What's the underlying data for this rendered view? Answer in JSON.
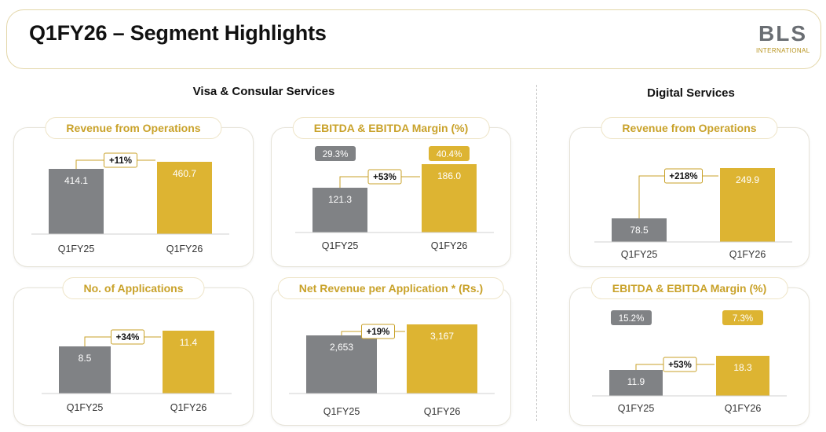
{
  "header": {
    "title": "Q1FY26 – Segment Highlights",
    "logo_main": "BLS",
    "logo_sub": "INTERNATIONAL"
  },
  "sections": {
    "visa": "Visa & Consular Services",
    "digital": "Digital Services"
  },
  "colors": {
    "prior": "#808285",
    "current": "#ddb432",
    "accent": "#c9a22a"
  },
  "chart_data": [
    {
      "id": "visa-revenue",
      "type": "bar",
      "title": "Revenue from Operations",
      "categories": [
        "Q1FY25",
        "Q1FY26"
      ],
      "values": [
        414.1,
        460.7
      ],
      "value_labels": [
        "414.1",
        "460.7"
      ],
      "growth": "+11%"
    },
    {
      "id": "visa-ebitda",
      "type": "bar",
      "title": "EBITDA & EBITDA Margin (%)",
      "categories": [
        "Q1FY25",
        "Q1FY26"
      ],
      "values": [
        121.3,
        186.0
      ],
      "value_labels": [
        "121.3",
        "186.0"
      ],
      "margins": [
        "29.3%",
        "40.4%"
      ],
      "growth": "+53%"
    },
    {
      "id": "visa-applications",
      "type": "bar",
      "title": "No. of Applications",
      "categories": [
        "Q1FY25",
        "Q1FY26"
      ],
      "values": [
        8.5,
        11.4
      ],
      "value_labels": [
        "8.5",
        "11.4"
      ],
      "growth": "+34%"
    },
    {
      "id": "visa-net-revenue",
      "type": "bar",
      "title": "Net Revenue per Application * (Rs.)",
      "categories": [
        "Q1FY25",
        "Q1FY26"
      ],
      "values": [
        2653,
        3167
      ],
      "value_labels": [
        "2,653",
        "3,167"
      ],
      "growth": "+19%"
    },
    {
      "id": "digital-revenue",
      "type": "bar",
      "title": "Revenue from Operations",
      "categories": [
        "Q1FY25",
        "Q1FY26"
      ],
      "values": [
        78.5,
        249.9
      ],
      "value_labels": [
        "78.5",
        "249.9"
      ],
      "growth": "+218%"
    },
    {
      "id": "digital-ebitda",
      "type": "bar",
      "title": "EBITDA & EBITDA Margin (%)",
      "categories": [
        "Q1FY25",
        "Q1FY26"
      ],
      "values": [
        11.9,
        18.3
      ],
      "value_labels": [
        "11.9",
        "18.3"
      ],
      "margins": [
        "15.2%",
        "7.3%"
      ],
      "growth": "+53%"
    }
  ]
}
